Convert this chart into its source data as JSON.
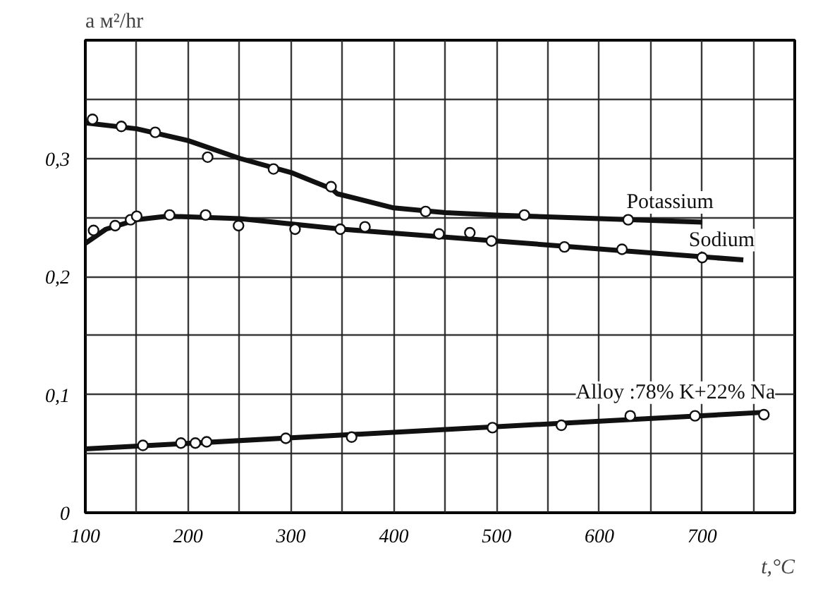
{
  "chart_data": {
    "type": "line",
    "xlabel": "t,°C",
    "ylabel": "a м²/hr",
    "xlim": [
      100,
      790
    ],
    "ylim": [
      0,
      0.4
    ],
    "xticks": [
      100,
      200,
      300,
      400,
      500,
      600,
      700
    ],
    "yticks": [
      {
        "value": 0,
        "label": "0"
      },
      {
        "value": 0.1,
        "label": "0,1"
      },
      {
        "value": 0.2,
        "label": "0,2"
      },
      {
        "value": 0.3,
        "label": "0,3"
      }
    ],
    "grid": true,
    "legend": false,
    "series": [
      {
        "name": "Potassium",
        "color": "#111111",
        "x": [
          100,
          150,
          200,
          250,
          300,
          340,
          345,
          400,
          450,
          500,
          600,
          700
        ],
        "values": [
          0.33,
          0.325,
          0.315,
          0.3,
          0.288,
          0.274,
          0.27,
          0.258,
          0.254,
          0.252,
          0.249,
          0.246
        ]
      },
      {
        "name": "Sodium",
        "color": "#111111",
        "x": [
          100,
          120,
          150,
          180,
          250,
          350,
          500,
          620,
          740
        ],
        "values": [
          0.228,
          0.24,
          0.248,
          0.251,
          0.249,
          0.24,
          0.23,
          0.222,
          0.214
        ]
      },
      {
        "name": "Alloy :78% K+22% Na",
        "color": "#111111",
        "x": [
          100,
          760
        ],
        "values": [
          0.054,
          0.085
        ]
      },
      {
        "type": "scatter",
        "marker": "circle",
        "color": "#111111",
        "x": [
          107,
          135,
          168,
          219,
          283,
          339,
          431,
          527,
          628
        ],
        "values": [
          0.333,
          0.327,
          0.322,
          0.301,
          0.291,
          0.276,
          0.255,
          0.252,
          0.248
        ]
      },
      {
        "type": "scatter",
        "marker": "circle",
        "color": "#111111",
        "x": [
          108,
          129,
          144,
          150,
          182,
          217,
          249,
          304,
          348,
          372,
          444,
          474,
          495,
          566,
          622,
          700
        ],
        "values": [
          0.239,
          0.243,
          0.248,
          0.251,
          0.252,
          0.252,
          0.243,
          0.24,
          0.24,
          0.242,
          0.236,
          0.237,
          0.23,
          0.225,
          0.223,
          0.216
        ]
      },
      {
        "type": "scatter",
        "marker": "circle",
        "color": "#111111",
        "x": [
          156,
          193,
          207,
          218,
          295,
          359,
          496,
          563,
          630,
          693,
          760
        ],
        "values": [
          0.057,
          0.059,
          0.059,
          0.06,
          0.063,
          0.064,
          0.072,
          0.074,
          0.082,
          0.082,
          0.083
        ]
      }
    ]
  }
}
